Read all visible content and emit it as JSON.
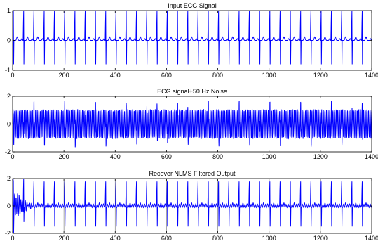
{
  "figure": {
    "colors": {
      "signal": "#0000ff",
      "axes": "#000000",
      "grid": "#808080",
      "background": "#ffffff"
    },
    "x_tick_labels": [
      "0",
      "200",
      "400",
      "600",
      "800",
      "1000",
      "1200",
      "1400"
    ]
  },
  "chart_data": [
    {
      "type": "line",
      "title": "Input ECG Signal",
      "xlabel": "",
      "ylabel": "",
      "xlim": [
        0,
        1400
      ],
      "ylim": [
        -1,
        1
      ],
      "xticks": [
        0,
        200,
        400,
        600,
        800,
        1000,
        1200,
        1400
      ],
      "yticks": [
        -1,
        0,
        1
      ],
      "y_tick_labels": [
        "-1",
        "0",
        "1"
      ],
      "grid_x_lines": false,
      "series": [
        {
          "style": "clean-ecg",
          "beat_period": 40,
          "r_peak": 1.0,
          "s_trough": -0.8,
          "t_wave": 0.12,
          "baseline": 0
        }
      ]
    },
    {
      "type": "line",
      "title": "ECG signal+50 Hz Noise",
      "xlabel": "",
      "ylabel": "",
      "xlim": [
        0,
        1400
      ],
      "ylim": [
        -2,
        2
      ],
      "xticks": [
        0,
        200,
        400,
        600,
        800,
        1000,
        1200,
        1400
      ],
      "yticks": [
        -2,
        0,
        2
      ],
      "y_tick_labels": [
        "-2",
        "0",
        "2"
      ],
      "grid_x_lines": false,
      "series": [
        {
          "style": "noisy-ecg",
          "beat_period": 40,
          "noise_amplitude": 1.0,
          "r_peak": 1.1,
          "s_trough": -1.0
        }
      ]
    },
    {
      "type": "line",
      "title": "Recover NLMS Filtered Output",
      "xlabel": "",
      "ylabel": "",
      "xlim": [
        0,
        1400
      ],
      "ylim": [
        -2,
        2
      ],
      "xticks": [
        0,
        200,
        400,
        600,
        800,
        1000,
        1200,
        1400
      ],
      "yticks": [
        -2,
        0,
        2
      ],
      "y_tick_labels": [
        "-2",
        "0",
        "2"
      ],
      "grid_x_lines": true,
      "series": [
        {
          "style": "filtered-ecg",
          "beat_period": 40,
          "r_peak": 1.7,
          "s_trough": -1.5,
          "transient_until": 80
        }
      ]
    }
  ]
}
